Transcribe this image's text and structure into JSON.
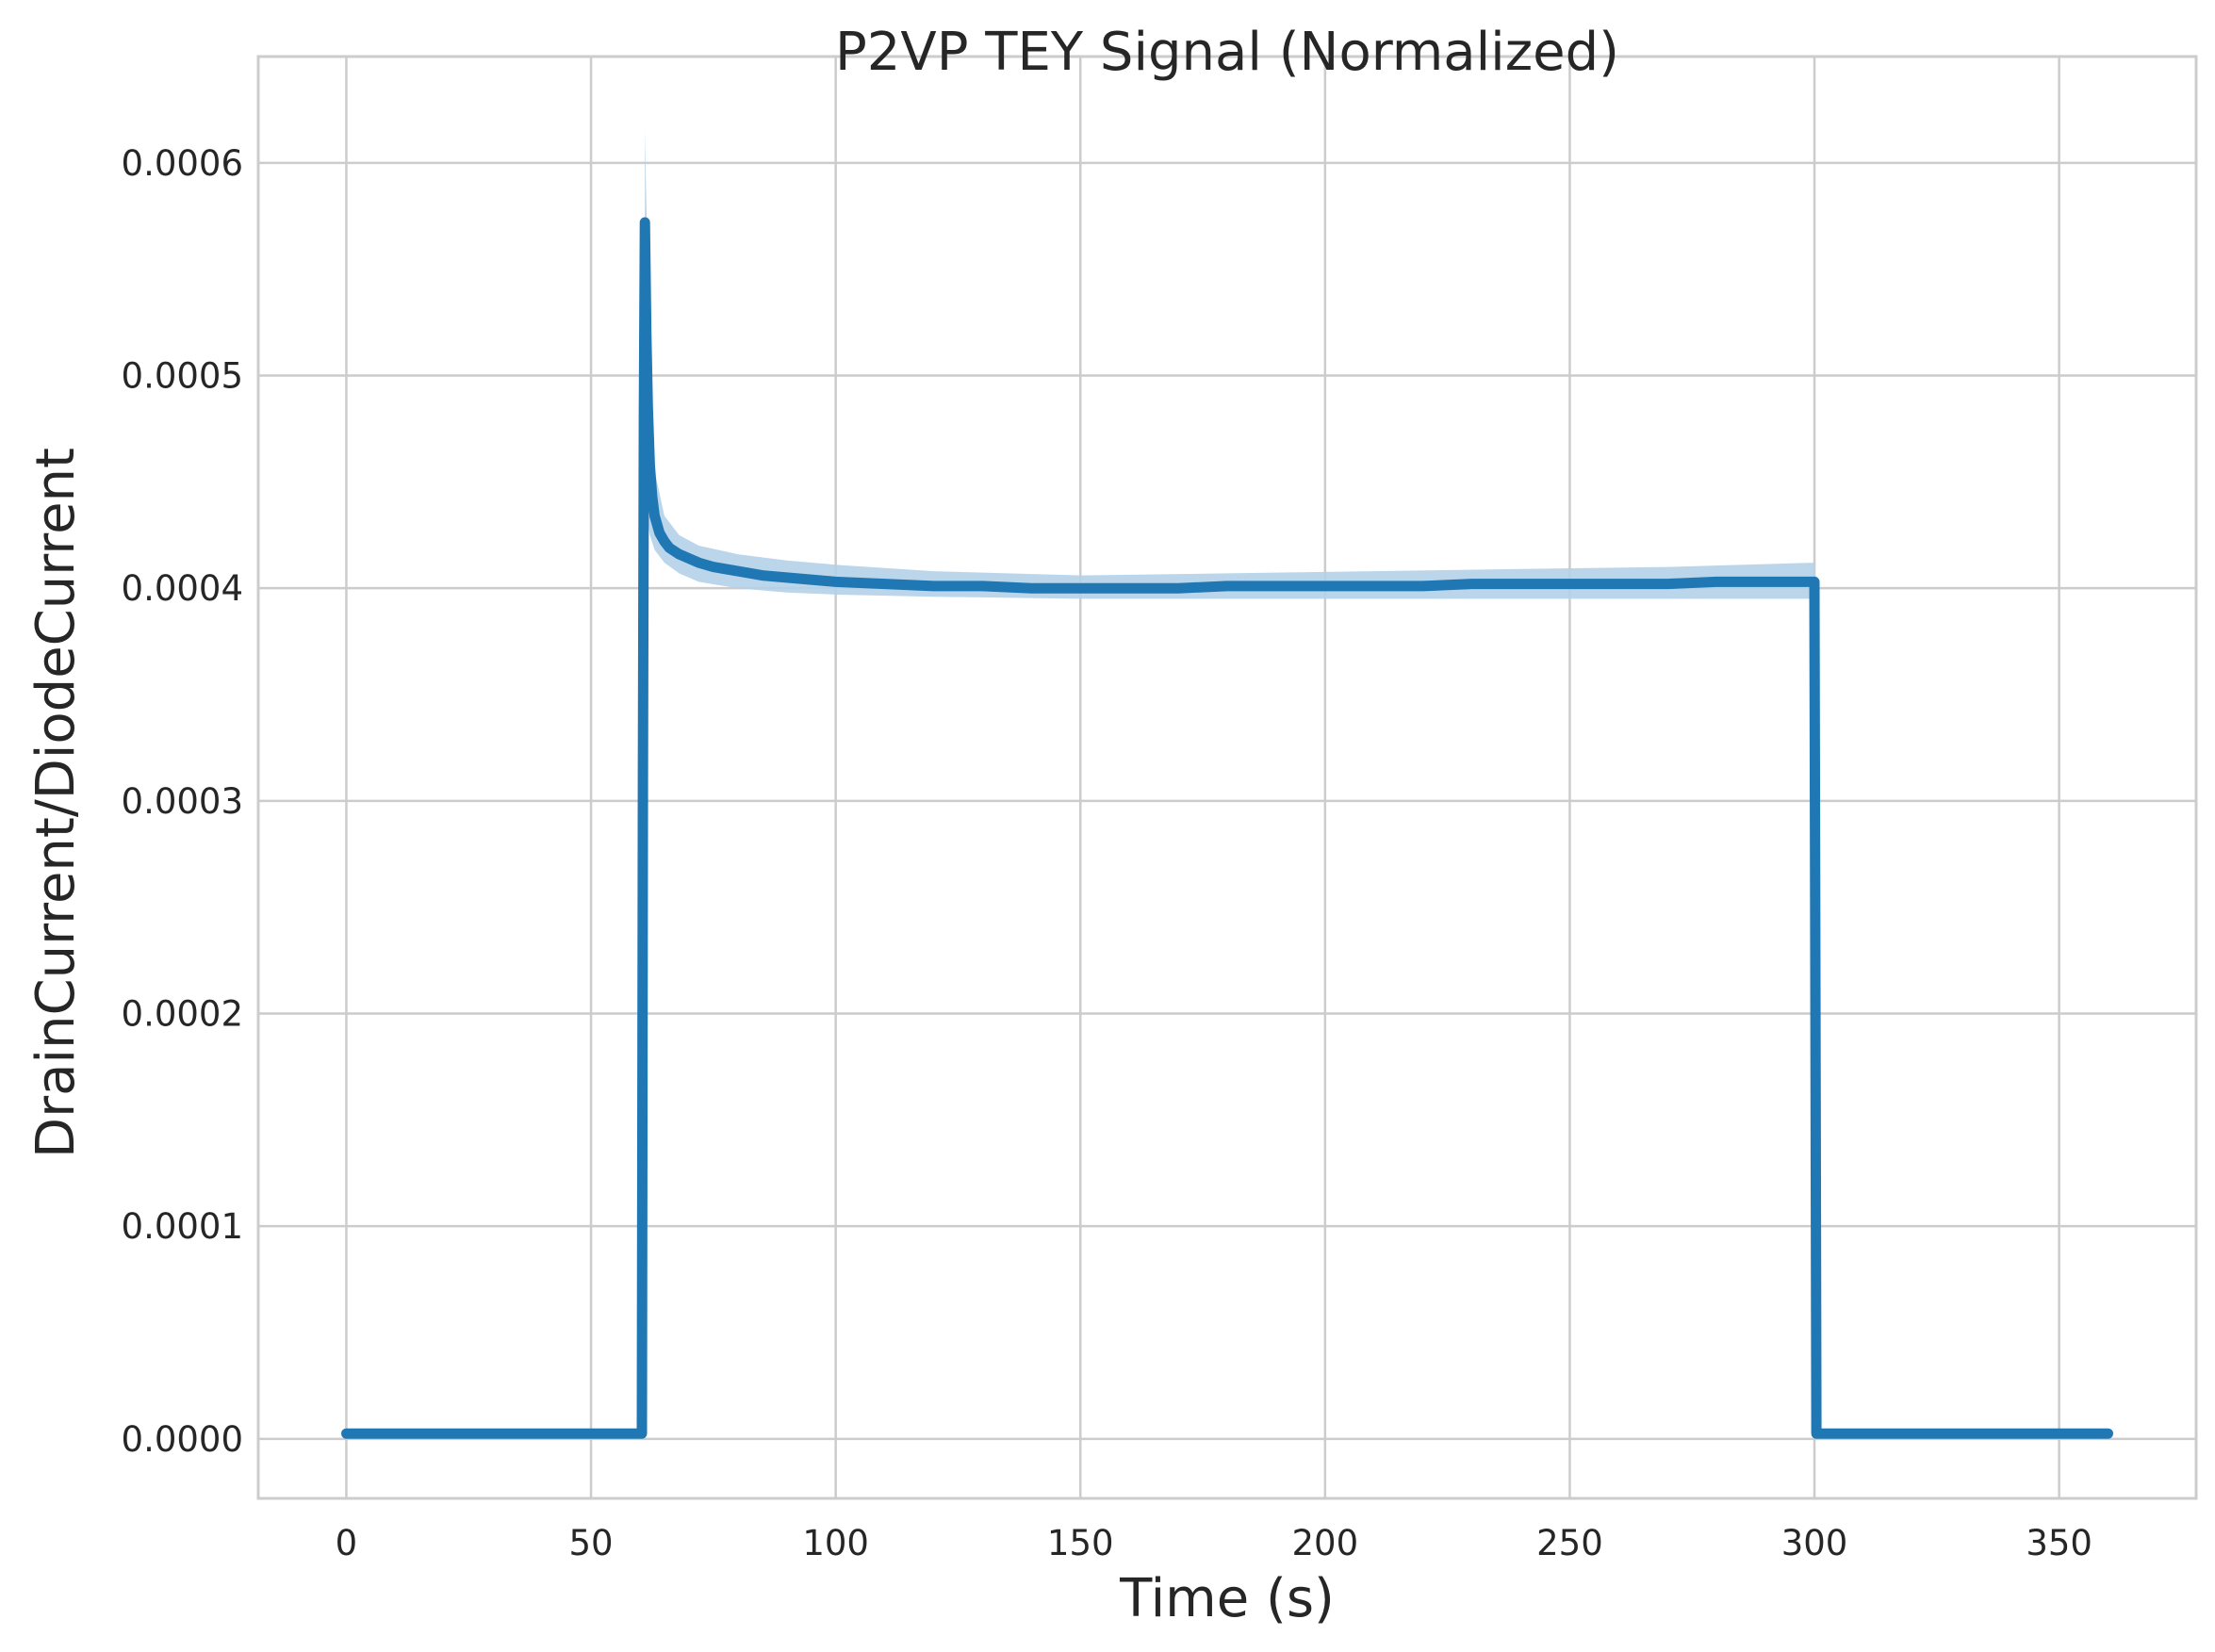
{
  "chart_data": {
    "type": "line",
    "title": "P2VP TEY Signal (Normalized)",
    "xlabel": "Time (s)",
    "ylabel": "DrainCurrent/DiodeCurrent",
    "xlim": [
      -18,
      378
    ],
    "ylim": [
      -2.8e-05,
      0.00065
    ],
    "xticks": [
      0,
      50,
      100,
      150,
      200,
      250,
      300,
      350
    ],
    "xtick_labels": [
      "0",
      "50",
      "100",
      "150",
      "200",
      "250",
      "300",
      "350"
    ],
    "yticks": [
      0.0,
      0.0001,
      0.0002,
      0.0003,
      0.0004,
      0.0005,
      0.0006
    ],
    "ytick_labels": [
      "0.0000",
      "0.0001",
      "0.0002",
      "0.0003",
      "0.0004",
      "0.0005",
      "0.0006"
    ],
    "grid": true,
    "line_color": "#1f77b4",
    "band_color": "#b4d0e8",
    "series": [
      {
        "x": [
          0,
          60.4,
          60.6,
          60.8,
          61,
          61.3,
          61.6,
          62,
          62.5,
          63,
          64,
          65,
          66,
          68,
          70,
          72,
          75,
          80,
          85,
          90,
          95,
          100,
          110,
          120,
          130,
          140,
          150,
          160,
          170,
          180,
          190,
          200,
          210,
          220,
          230,
          240,
          250,
          260,
          270,
          280,
          290,
          300,
          300.2,
          300.4,
          330,
          360
        ],
        "y": [
          2.5e-06,
          2.5e-06,
          0.00031,
          0.00048,
          0.000572,
          0.00052,
          0.000485,
          0.000458,
          0.000443,
          0.000434,
          0.000426,
          0.000422,
          0.000419,
          0.000416,
          0.000414,
          0.000412,
          0.00041,
          0.000408,
          0.000406,
          0.000405,
          0.000404,
          0.000403,
          0.000402,
          0.000401,
          0.000401,
          0.0004,
          0.0004,
          0.0004,
          0.0004,
          0.000401,
          0.000401,
          0.000401,
          0.000401,
          0.000401,
          0.000402,
          0.000402,
          0.000402,
          0.000402,
          0.000402,
          0.000403,
          0.000403,
          0.000403,
          0.0002,
          2.5e-06,
          2.5e-06,
          2.5e-06
        ],
        "band_x": [
          61,
          62,
          63,
          65,
          68,
          72,
          80,
          90,
          100,
          120,
          150,
          180,
          210,
          240,
          270,
          300
        ],
        "band_lower": [
          0.00044,
          0.000425,
          0.000418,
          0.000412,
          0.000407,
          0.000403,
          0.0004,
          0.000398,
          0.000397,
          0.000396,
          0.000395,
          0.000395,
          0.000395,
          0.000395,
          0.000395,
          0.000395
        ],
        "band_upper": [
          0.000615,
          0.0005,
          0.000455,
          0.000434,
          0.000425,
          0.00042,
          0.000416,
          0.000413,
          0.000411,
          0.000408,
          0.000406,
          0.000407,
          0.000408,
          0.000409,
          0.00041,
          0.000412
        ]
      }
    ]
  }
}
